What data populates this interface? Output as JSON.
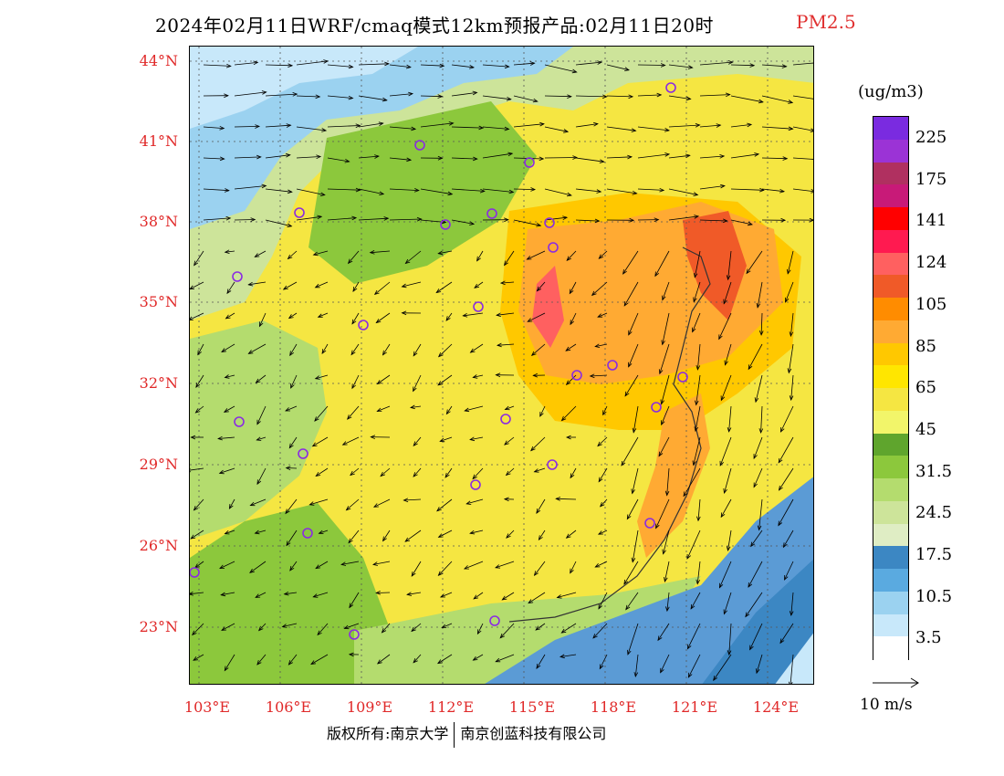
{
  "header": {
    "title": "2024年02月11日WRF/cmaq模式12km预报产品:02月11日20时",
    "variable": "PM2.5"
  },
  "map": {
    "lat_labels": [
      "44°N",
      "41°N",
      "38°N",
      "35°N",
      "32°N",
      "29°N",
      "26°N",
      "23°N"
    ],
    "lon_labels": [
      "103°E",
      "106°E",
      "109°E",
      "112°E",
      "115°E",
      "118°E",
      "121°E",
      "124°E"
    ],
    "colors": {
      "land_base": "#f5e642",
      "ocean": "#5b9bd5",
      "label_red": "#e02828"
    }
  },
  "legend": {
    "units": "(ug/m3)",
    "labels": [
      "225",
      "175",
      "141",
      "124",
      "105",
      "85",
      "65",
      "45",
      "31.5",
      "24.5",
      "17.5",
      "10.5",
      "3.5"
    ],
    "colors": [
      "#7a2be0",
      "#9b33d6",
      "#b03060",
      "#c81a78",
      "#ff0000",
      "#ff1a50",
      "#ff6060",
      "#f05a28",
      "#ff8c00",
      "#ffaa33",
      "#ffc800",
      "#ffe600",
      "#f5e642",
      "#f2f56a",
      "#5fa52d",
      "#8cc83c",
      "#b4dc6e",
      "#cde49a",
      "#dfedc4",
      "#3c87c3",
      "#5aaae0",
      "#9bd2f0",
      "#c8e8fa",
      "#ffffff"
    ]
  },
  "wind_reference": {
    "label": "10 m/s"
  },
  "footer": {
    "copyright": "版权所有:南京大学",
    "company": "南京创蓝科技有限公司"
  }
}
